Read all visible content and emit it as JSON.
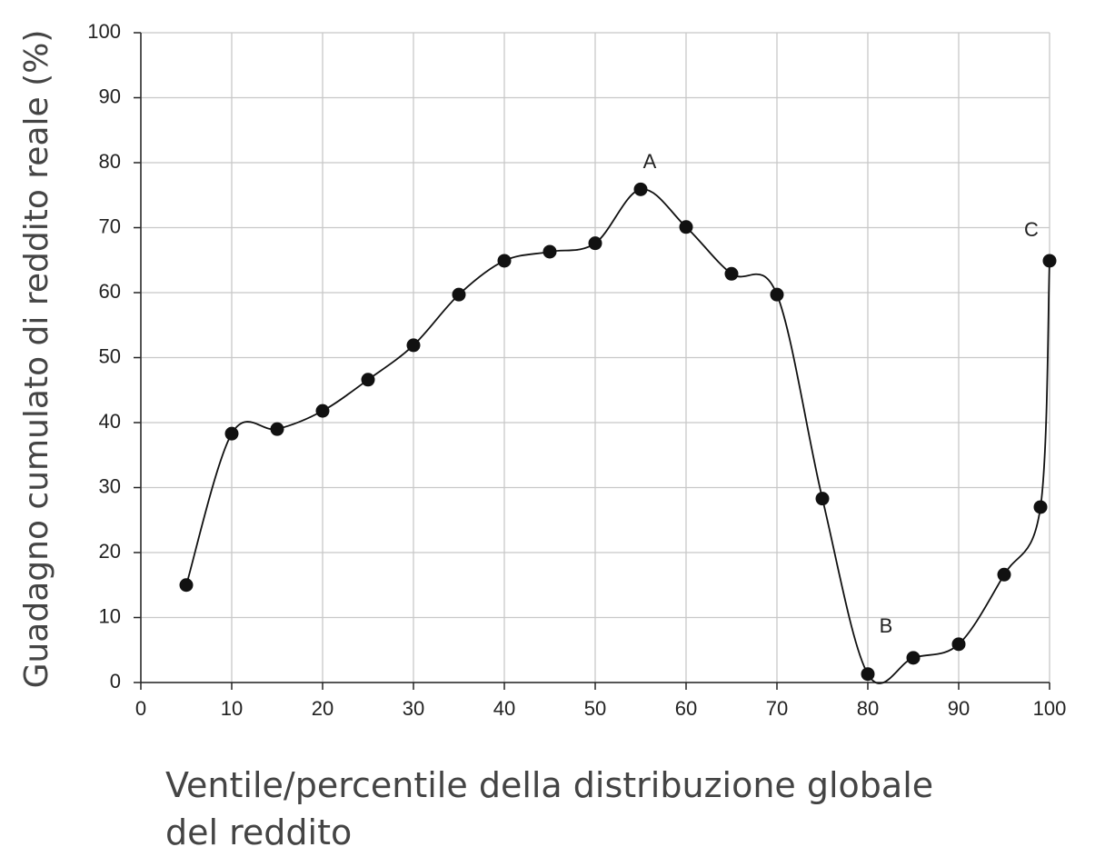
{
  "chart_data": {
    "type": "line",
    "x_label": "Ventile/percentile della distribuzione globale del reddito",
    "y_label": "Guadagno cumulato di reddito reale (%)",
    "x": [
      5,
      10,
      15,
      20,
      25,
      30,
      35,
      40,
      45,
      50,
      55,
      60,
      65,
      70,
      75,
      80,
      85,
      90,
      95,
      99,
      100
    ],
    "series": [
      {
        "color": "#111111",
        "values": [
          15,
          38.3,
          39,
          41.8,
          46.6,
          51.9,
          59.7,
          64.9,
          66.3,
          67.6,
          75.9,
          70.1,
          62.9,
          59.7,
          28.3,
          1.3,
          3.8,
          5.9,
          16.6,
          27,
          64.9
        ]
      }
    ],
    "annotations": [
      "A",
      "B",
      "C"
    ],
    "xlim": [
      0,
      100
    ],
    "xticks": [
      0,
      10,
      20,
      30,
      40,
      50,
      60,
      70,
      80,
      90,
      100
    ],
    "ylim": [
      0,
      100
    ],
    "yticks": [
      0,
      10,
      20,
      30,
      40,
      50,
      60,
      70,
      80,
      90,
      100
    ],
    "grid": true
  }
}
